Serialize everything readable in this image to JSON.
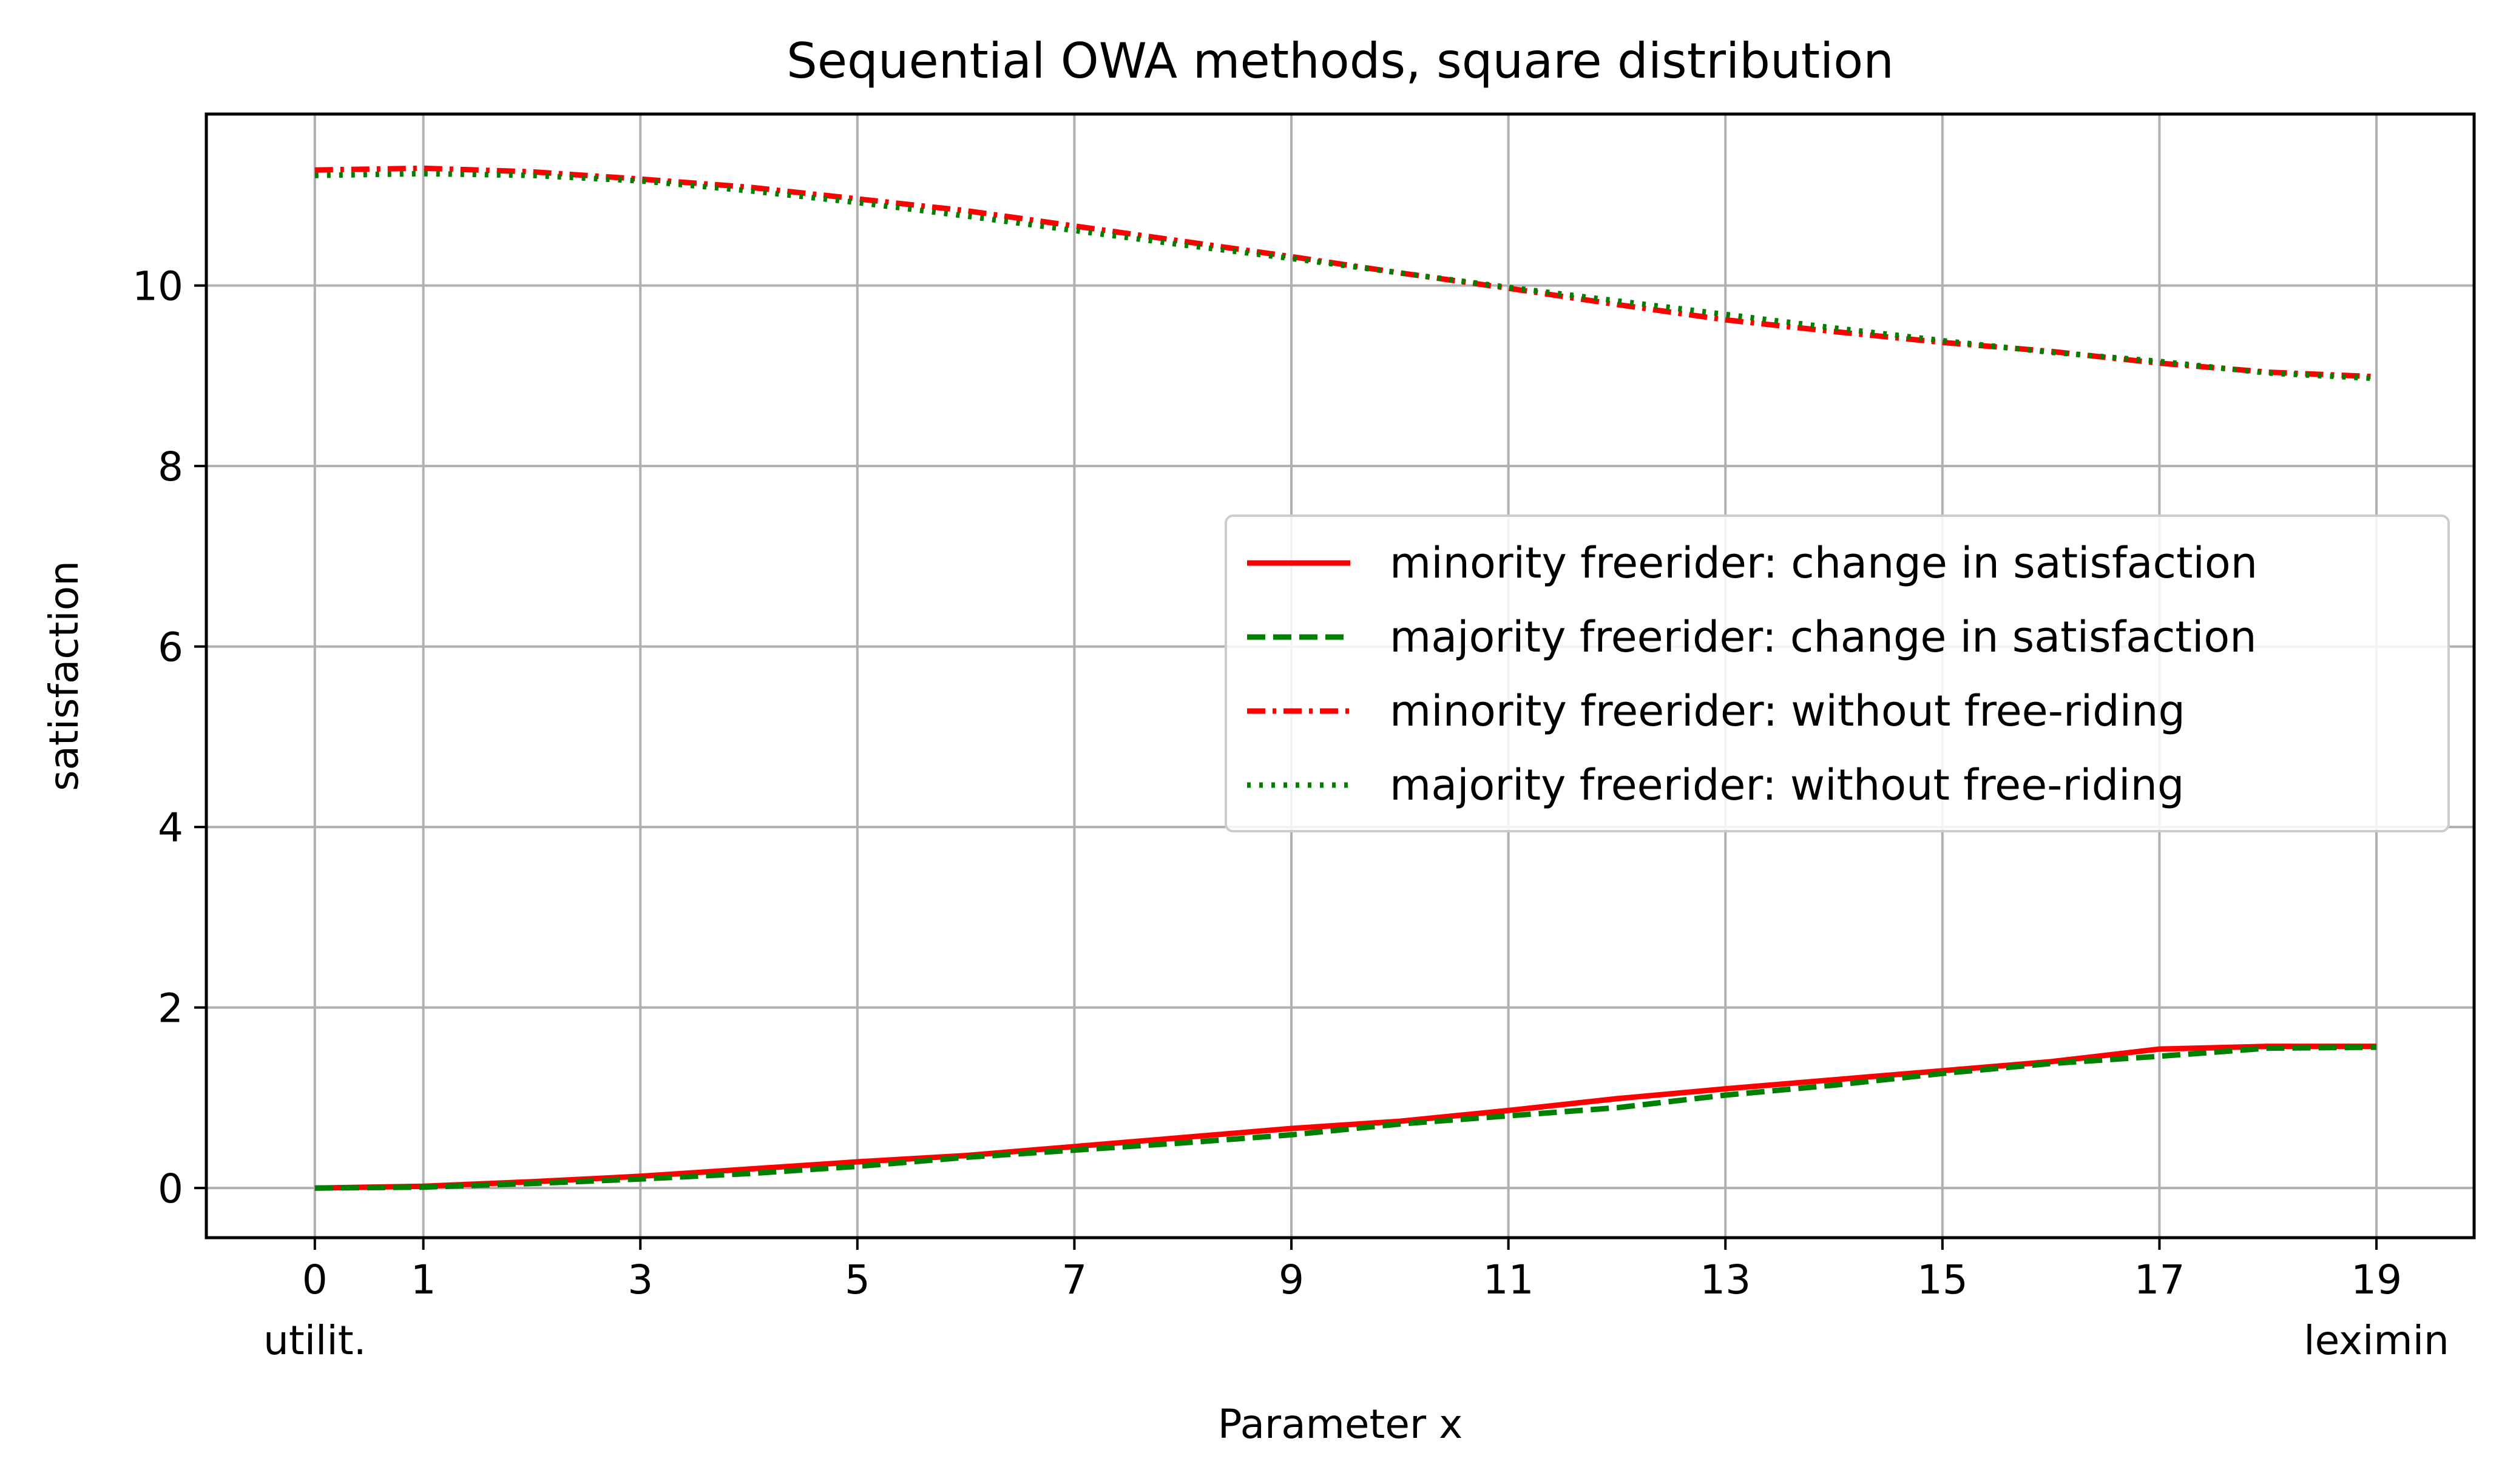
{
  "chart_data": {
    "type": "line",
    "title": "Sequential OWA methods, square distribution",
    "xlabel": "Parameter x",
    "ylabel": "satisfaction",
    "xlim": [
      -1.0,
      19.9
    ],
    "ylim": [
      -0.55,
      11.9
    ],
    "xticks": [
      0,
      1,
      3,
      5,
      7,
      9,
      11,
      13,
      15,
      17,
      19
    ],
    "xtick_labels": [
      "0",
      "1",
      "3",
      "5",
      "7",
      "9",
      "11",
      "13",
      "15",
      "17",
      "19"
    ],
    "xtick_sublabels": [
      {
        "x": 0,
        "text": "utilit."
      },
      {
        "x": 19,
        "text": "leximin"
      }
    ],
    "yticks": [
      0,
      2,
      4,
      6,
      8,
      10
    ],
    "ytick_labels": [
      "0",
      "2",
      "4",
      "6",
      "8",
      "10"
    ],
    "grid": true,
    "legend_position": "center-right",
    "x": [
      0,
      1,
      2,
      3,
      4,
      5,
      6,
      7,
      8,
      9,
      10,
      11,
      12,
      13,
      14,
      15,
      16,
      17,
      18,
      19
    ],
    "series": [
      {
        "name": "minority freerider: change in satisfaction",
        "color": "#ff0000",
        "dash": "solid",
        "values": [
          0.0,
          0.02,
          0.07,
          0.13,
          0.21,
          0.29,
          0.36,
          0.46,
          0.56,
          0.66,
          0.74,
          0.86,
          0.99,
          1.1,
          1.2,
          1.3,
          1.4,
          1.54,
          1.57,
          1.57
        ]
      },
      {
        "name": "majority freerider: change in satisfaction",
        "color": "#008000",
        "dash": "dashed",
        "values": [
          0.0,
          0.01,
          0.05,
          0.1,
          0.16,
          0.24,
          0.34,
          0.42,
          0.5,
          0.59,
          0.71,
          0.8,
          0.89,
          1.03,
          1.14,
          1.27,
          1.38,
          1.46,
          1.55,
          1.56
        ]
      },
      {
        "name": "minority freerider: without free-riding",
        "color": "#ff0000",
        "dash": "dashdot",
        "values": [
          11.28,
          11.3,
          11.26,
          11.18,
          11.09,
          10.96,
          10.83,
          10.66,
          10.49,
          10.32,
          10.14,
          9.97,
          9.79,
          9.62,
          9.49,
          9.37,
          9.27,
          9.14,
          9.04,
          8.99
        ]
      },
      {
        "name": "majority freerider: without free-riding",
        "color": "#008000",
        "dash": "dotted",
        "values": [
          11.22,
          11.24,
          11.22,
          11.16,
          11.05,
          10.92,
          10.77,
          10.61,
          10.45,
          10.3,
          10.14,
          9.98,
          9.83,
          9.68,
          9.53,
          9.39,
          9.26,
          9.16,
          9.03,
          8.97
        ]
      }
    ]
  }
}
